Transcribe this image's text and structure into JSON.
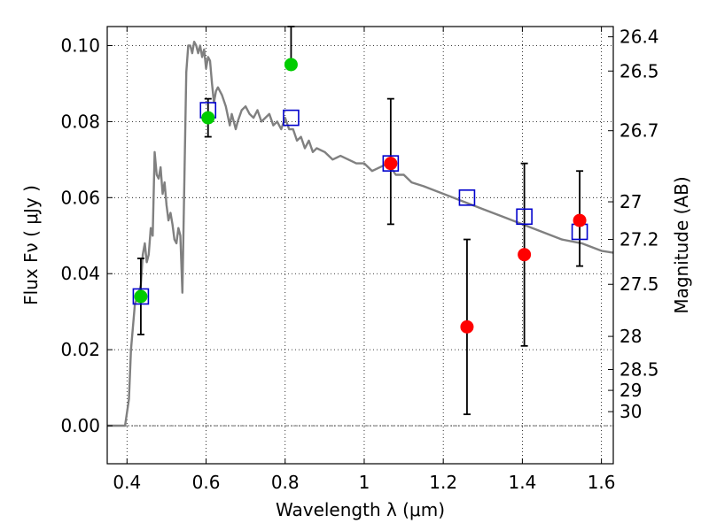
{
  "chart_data": {
    "type": "scatter",
    "xlabel": "Wavelength  λ (μm)",
    "ylabel": "Flux  Fν  ( μJy )",
    "ylabel_right": "Magnitude (AB)",
    "xlim": [
      0.35,
      1.63
    ],
    "ylim": [
      -0.01,
      0.105
    ],
    "grid": true,
    "x_ticks": [
      0.4,
      0.6,
      0.8,
      1.0,
      1.2,
      1.4,
      1.6
    ],
    "x_tick_labels": [
      "0.4",
      "0.6",
      "0.8",
      "1",
      "1.2",
      "1.4",
      "1.6"
    ],
    "y_ticks": [
      0.0,
      0.02,
      0.04,
      0.06,
      0.08,
      0.1
    ],
    "y_tick_labels": [
      "0.00",
      "0.02",
      "0.04",
      "0.06",
      "0.08",
      "0.10"
    ],
    "right_ticks": [
      {
        "label": "26.4",
        "flux": 0.1023
      },
      {
        "label": "26.5",
        "flux": 0.0933
      },
      {
        "label": "26.7",
        "flux": 0.0776
      },
      {
        "label": "27",
        "flux": 0.0589
      },
      {
        "label": "27.2",
        "flux": 0.049
      },
      {
        "label": "27.5",
        "flux": 0.0372
      },
      {
        "label": "28",
        "flux": 0.0235
      },
      {
        "label": "28.5",
        "flux": 0.0148
      },
      {
        "label": "29",
        "flux": 0.0093
      },
      {
        "label": "30",
        "flux": 0.0037
      }
    ],
    "series": [
      {
        "kind": "line",
        "color": "#808080",
        "x": [
          0.35,
          0.395,
          0.405,
          0.41,
          0.42,
          0.43,
          0.435,
          0.44,
          0.445,
          0.45,
          0.455,
          0.46,
          0.465,
          0.47,
          0.475,
          0.48,
          0.485,
          0.49,
          0.495,
          0.5,
          0.505,
          0.51,
          0.515,
          0.52,
          0.525,
          0.53,
          0.535,
          0.54,
          0.545,
          0.55,
          0.555,
          0.56,
          0.565,
          0.57,
          0.575,
          0.58,
          0.585,
          0.59,
          0.595,
          0.6,
          0.605,
          0.61,
          0.615,
          0.62,
          0.625,
          0.63,
          0.64,
          0.65,
          0.66,
          0.665,
          0.67,
          0.675,
          0.68,
          0.69,
          0.7,
          0.71,
          0.72,
          0.73,
          0.74,
          0.75,
          0.76,
          0.77,
          0.78,
          0.79,
          0.8,
          0.81,
          0.82,
          0.83,
          0.84,
          0.85,
          0.86,
          0.87,
          0.88,
          0.9,
          0.92,
          0.94,
          0.96,
          0.98,
          1.0,
          1.02,
          1.04,
          1.06,
          1.08,
          1.1,
          1.12,
          1.15,
          1.2,
          1.25,
          1.3,
          1.35,
          1.4,
          1.45,
          1.5,
          1.55,
          1.6,
          1.63
        ],
        "y": [
          0.0,
          0.0,
          0.007,
          0.02,
          0.032,
          0.035,
          0.037,
          0.045,
          0.048,
          0.043,
          0.045,
          0.052,
          0.05,
          0.072,
          0.066,
          0.065,
          0.068,
          0.061,
          0.064,
          0.058,
          0.054,
          0.056,
          0.053,
          0.049,
          0.048,
          0.052,
          0.05,
          0.035,
          0.064,
          0.093,
          0.1,
          0.1,
          0.098,
          0.101,
          0.1,
          0.098,
          0.1,
          0.097,
          0.099,
          0.094,
          0.097,
          0.096,
          0.09,
          0.085,
          0.088,
          0.089,
          0.087,
          0.084,
          0.079,
          0.082,
          0.08,
          0.078,
          0.08,
          0.083,
          0.084,
          0.082,
          0.081,
          0.083,
          0.08,
          0.081,
          0.082,
          0.079,
          0.08,
          0.078,
          0.081,
          0.078,
          0.078,
          0.075,
          0.076,
          0.073,
          0.075,
          0.072,
          0.073,
          0.072,
          0.07,
          0.071,
          0.07,
          0.069,
          0.069,
          0.067,
          0.068,
          0.069,
          0.066,
          0.066,
          0.064,
          0.063,
          0.061,
          0.059,
          0.057,
          0.055,
          0.053,
          0.051,
          0.049,
          0.048,
          0.046,
          0.0455
        ]
      },
      {
        "kind": "open-square",
        "color": "#0000cc",
        "x": [
          0.435,
          0.605,
          0.815,
          1.067,
          1.26,
          1.405,
          1.545
        ],
        "y": [
          0.034,
          0.083,
          0.081,
          0.069,
          0.06,
          0.055,
          0.051
        ]
      },
      {
        "kind": "filled-circle",
        "color": "#00cc00",
        "x": [
          0.435,
          0.605,
          0.815
        ],
        "y": [
          0.034,
          0.081,
          0.095
        ],
        "err_low": [
          0.024,
          0.076,
          0.094
        ],
        "err_high": [
          0.044,
          0.086,
          0.105
        ]
      },
      {
        "kind": "filled-circle",
        "color": "#ff0000",
        "x": [
          1.067,
          1.26,
          1.405,
          1.545
        ],
        "y": [
          0.069,
          0.026,
          0.045,
          0.054
        ],
        "err_low": [
          0.053,
          0.003,
          0.021,
          0.042
        ],
        "err_high": [
          0.086,
          0.049,
          0.069,
          0.067
        ]
      }
    ]
  }
}
